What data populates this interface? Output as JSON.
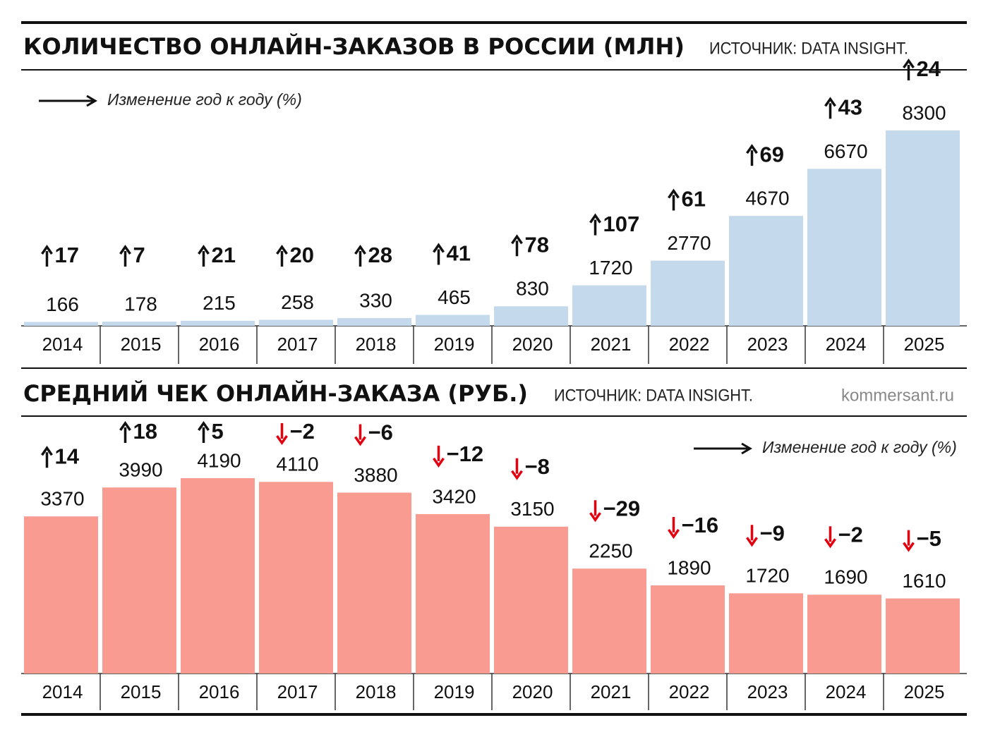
{
  "chart_data": [
    {
      "type": "bar",
      "title": "КОЛИЧЕСТВО ОНЛАЙН-ЗАКАЗОВ В РОССИИ (МЛН)",
      "source": "ИСТОЧНИК: DATA INSIGHT.",
      "legend": "Изменение год к году (%)",
      "categories": [
        "2014",
        "2015",
        "2016",
        "2017",
        "2018",
        "2019",
        "2020",
        "2021",
        "2022",
        "2023",
        "2024",
        "2025"
      ],
      "values": [
        166,
        178,
        215,
        258,
        330,
        465,
        830,
        1720,
        2770,
        4670,
        6670,
        8300
      ],
      "changes": [
        17,
        7,
        21,
        20,
        28,
        41,
        78,
        107,
        61,
        69,
        43,
        24
      ],
      "color": "#c5d9ec"
    },
    {
      "type": "bar",
      "title": "СРЕДНИЙ ЧЕК ОНЛАЙН-ЗАКАЗА (РУБ.)",
      "source": "ИСТОЧНИК: DATA INSIGHT.",
      "credit": "kommersant.ru",
      "legend": "Изменение год к году (%)",
      "categories": [
        "2014",
        "2015",
        "2016",
        "2017",
        "2018",
        "2019",
        "2020",
        "2021",
        "2022",
        "2023",
        "2024",
        "2025"
      ],
      "values": [
        3370,
        3990,
        4190,
        4110,
        3880,
        3420,
        3150,
        2250,
        1890,
        1720,
        1690,
        1610
      ],
      "changes": [
        14,
        18,
        5,
        -2,
        -6,
        -12,
        -8,
        -29,
        -16,
        -9,
        -2,
        -5
      ],
      "change_labels": [
        "14",
        "18",
        "5",
        "−2",
        "−6",
        "−12",
        "−8",
        "−29",
        "−16",
        "−9",
        "−2",
        "−5"
      ],
      "color": "#f99b91"
    }
  ]
}
